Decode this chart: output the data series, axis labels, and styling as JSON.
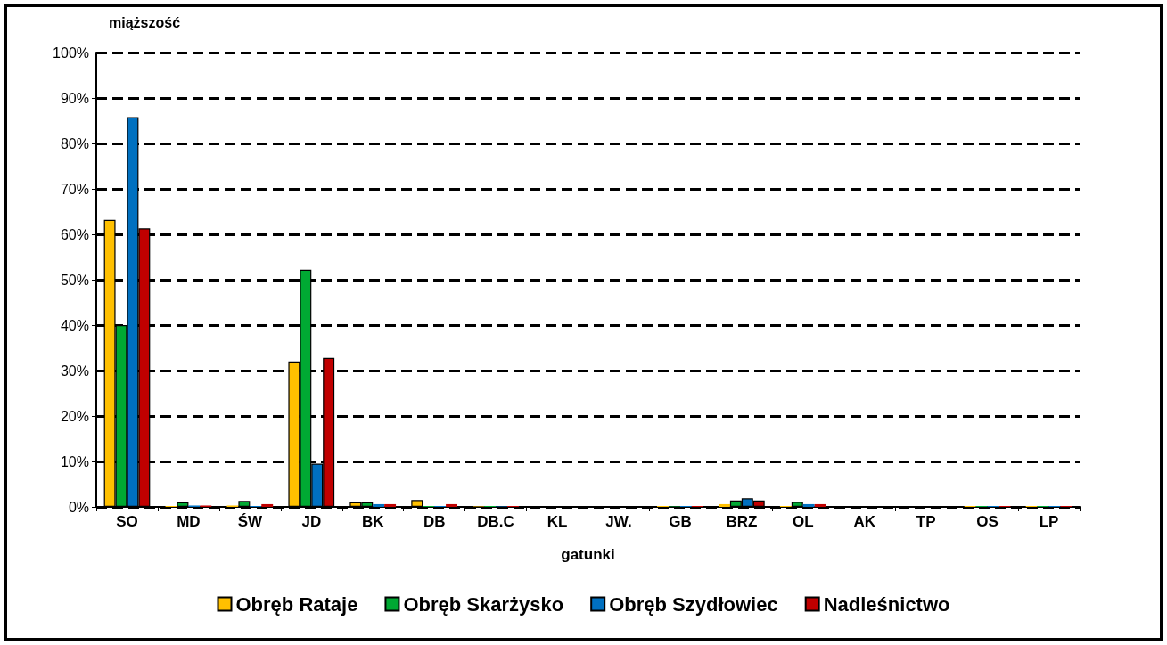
{
  "chart_data": {
    "type": "bar",
    "xlabel": "gatunki",
    "ylabel": "miąższość",
    "categories": [
      "SO",
      "MD",
      "ŚW",
      "JD",
      "BK",
      "DB",
      "DB.C",
      "KL",
      "JW.",
      "GB",
      "BRZ",
      "OL",
      "AK",
      "TP",
      "OS",
      "LP"
    ],
    "series": [
      {
        "name": "Obręb Rataje",
        "color": "#ffc000",
        "values": [
          63.2,
          0.2,
          0.3,
          32,
          1,
          1.5,
          0.1,
          0,
          0,
          0.2,
          0.6,
          0.2,
          0,
          0,
          0.2,
          0.2
        ]
      },
      {
        "name": "Obręb Skarżysko",
        "color": "#00a933",
        "values": [
          40,
          1,
          1.3,
          52.2,
          1,
          0.2,
          0.2,
          0,
          0,
          0.1,
          1.4,
          1.1,
          0,
          0,
          0.2,
          0.2
        ]
      },
      {
        "name": "Obręb Szydłowiec",
        "color": "#0070c0",
        "values": [
          85.8,
          0.3,
          0.2,
          9.5,
          0.6,
          0.2,
          0.1,
          0,
          0,
          0.2,
          1.9,
          0.6,
          0,
          0,
          0.2,
          0.2
        ]
      },
      {
        "name": "Nadleśnictwo",
        "color": "#c00000",
        "values": [
          61.3,
          0.3,
          0.6,
          32.8,
          0.6,
          0.6,
          0.2,
          0,
          0,
          0.2,
          1.4,
          0.6,
          0,
          0,
          0.2,
          0.2
        ]
      }
    ],
    "ylim": [
      0,
      100
    ],
    "yticks": [
      {
        "value": 0,
        "label": "0%"
      },
      {
        "value": 10,
        "label": "10%"
      },
      {
        "value": 20,
        "label": "20%"
      },
      {
        "value": 30,
        "label": "30%"
      },
      {
        "value": 40,
        "label": "40%"
      },
      {
        "value": 50,
        "label": "50%"
      },
      {
        "value": 60,
        "label": "60%"
      },
      {
        "value": 70,
        "label": "70%"
      },
      {
        "value": 80,
        "label": "80%"
      },
      {
        "value": 90,
        "label": "90%"
      },
      {
        "value": 100,
        "label": "100%"
      }
    ],
    "grid": "y",
    "legend": "bottom",
    "line_style": "dashed"
  }
}
